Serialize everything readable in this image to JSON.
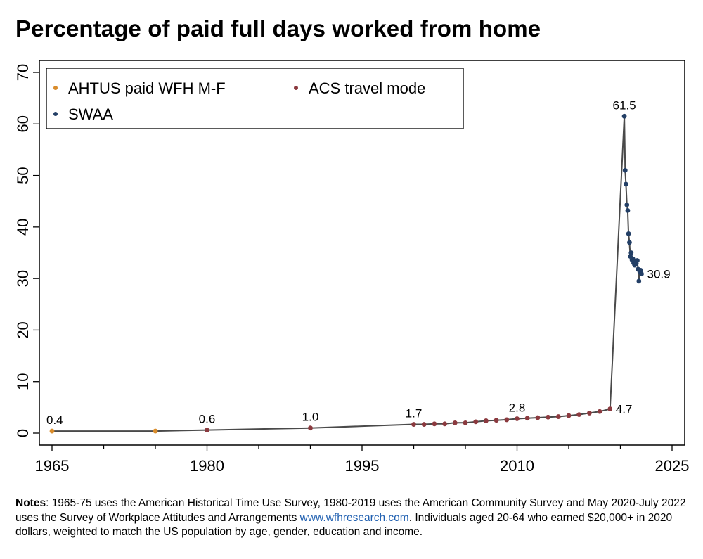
{
  "title": "Percentage of paid full days worked from home",
  "colors": {
    "ahtus": "#d98c2b",
    "acs": "#8b3a3f",
    "swaa": "#233f66",
    "line": "#4a4a4a"
  },
  "notes": {
    "label": "Notes",
    "text1": ": 1965-75 uses the American Historical Time Use Survey, 1980-2019 uses the American Community Survey and May 2020-July 2022 uses the Survey of Workplace Attitudes and Arrangements ",
    "link": "www.wfhresearch.com",
    "text2": ". Individuals aged 20-64 who earned $20,000+ in 2020 dollars, weighted to match the US population by age, gender, education and income."
  },
  "chart_data": {
    "type": "line",
    "xlim": [
      1965,
      2025
    ],
    "ylim": [
      0,
      70
    ],
    "x_ticks": [
      1965,
      1980,
      1995,
      2010,
      2025
    ],
    "y_ticks": [
      0,
      10,
      20,
      30,
      40,
      50,
      60,
      70
    ],
    "grid": false,
    "legend_position": "top-left",
    "series": [
      {
        "name": "AHTUS paid WFH M-F",
        "color": "#d98c2b",
        "points": [
          [
            1965,
            0.4
          ],
          [
            1975,
            0.4
          ]
        ]
      },
      {
        "name": "ACS travel mode",
        "color": "#8b3a3f",
        "points": [
          [
            1980,
            0.6
          ],
          [
            1990,
            1.0
          ],
          [
            2000,
            1.7
          ],
          [
            2001,
            1.7
          ],
          [
            2002,
            1.8
          ],
          [
            2003,
            1.8
          ],
          [
            2004,
            2.0
          ],
          [
            2005,
            2.0
          ],
          [
            2006,
            2.2
          ],
          [
            2007,
            2.4
          ],
          [
            2008,
            2.5
          ],
          [
            2009,
            2.6
          ],
          [
            2010,
            2.8
          ],
          [
            2011,
            2.9
          ],
          [
            2012,
            3.0
          ],
          [
            2013,
            3.1
          ],
          [
            2014,
            3.2
          ],
          [
            2015,
            3.4
          ],
          [
            2016,
            3.6
          ],
          [
            2017,
            3.9
          ],
          [
            2018,
            4.2
          ],
          [
            2019,
            4.7
          ]
        ]
      },
      {
        "name": "SWAA",
        "color": "#233f66",
        "points": [
          [
            2020.38,
            61.5
          ],
          [
            2020.46,
            51.0
          ],
          [
            2020.54,
            48.3
          ],
          [
            2020.63,
            44.3
          ],
          [
            2020.71,
            43.2
          ],
          [
            2020.79,
            38.7
          ],
          [
            2020.88,
            37.0
          ],
          [
            2020.96,
            34.3
          ],
          [
            2021.04,
            35.0
          ],
          [
            2021.13,
            33.6
          ],
          [
            2021.21,
            33.8
          ],
          [
            2021.29,
            33.0
          ],
          [
            2021.38,
            32.6
          ],
          [
            2021.46,
            33.4
          ],
          [
            2021.54,
            32.9
          ],
          [
            2021.63,
            33.5
          ],
          [
            2021.71,
            31.8
          ],
          [
            2021.79,
            29.5
          ],
          [
            2021.88,
            31.4
          ],
          [
            2021.96,
            31.6
          ],
          [
            2022.04,
            30.9
          ]
        ]
      }
    ],
    "line_order": "chronological",
    "data_labels": [
      {
        "x": 1965,
        "y": 0.4,
        "text": "0.4",
        "position": "above"
      },
      {
        "x": 1980,
        "y": 0.6,
        "text": "0.6",
        "position": "above"
      },
      {
        "x": 1990,
        "y": 1.0,
        "text": "1.0",
        "position": "above"
      },
      {
        "x": 2000,
        "y": 1.7,
        "text": "1.7",
        "position": "above"
      },
      {
        "x": 2010,
        "y": 2.8,
        "text": "2.8",
        "position": "above"
      },
      {
        "x": 2019,
        "y": 4.7,
        "text": "4.7",
        "position": "right"
      },
      {
        "x": 2020.38,
        "y": 61.5,
        "text": "61.5",
        "position": "above"
      },
      {
        "x": 2022.04,
        "y": 30.9,
        "text": "30.9",
        "position": "right"
      }
    ]
  }
}
